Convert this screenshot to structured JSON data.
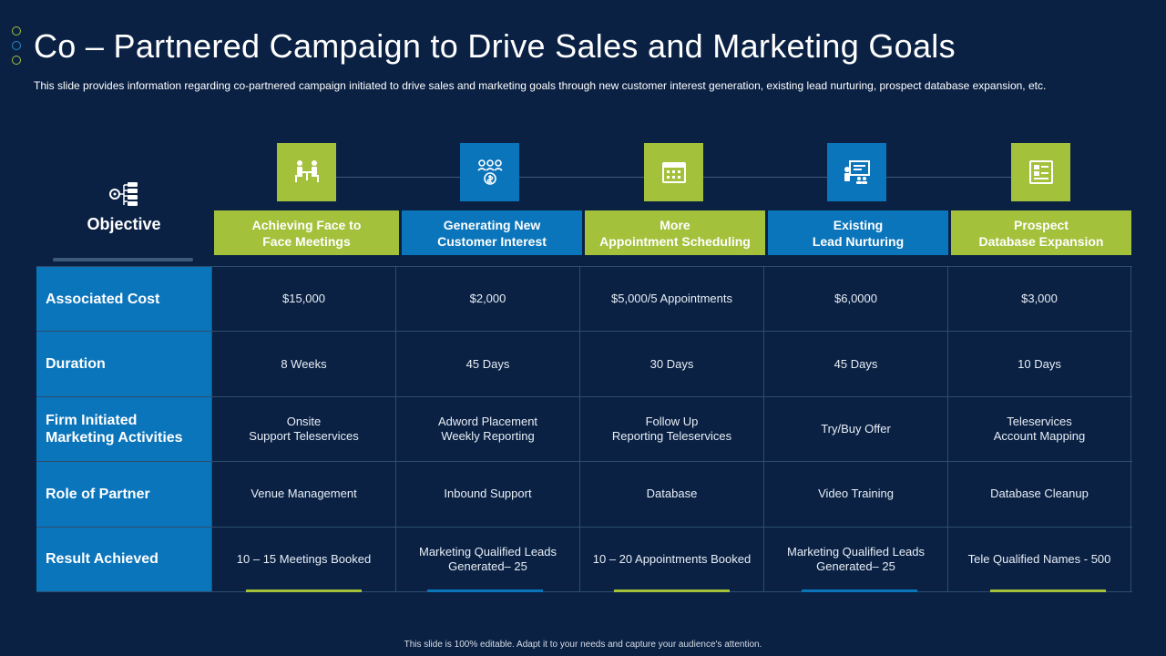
{
  "title": "Co – Partnered Campaign to Drive Sales and Marketing Goals",
  "subtitle": "This slide provides information regarding co-partnered campaign initiated to drive sales and marketing goals through new customer interest generation, existing lead nurturing, prospect database expansion, etc.",
  "objective_label": "Objective",
  "colors": {
    "background": "#0a2144",
    "green": "#a4c13c",
    "blue": "#0b75bb"
  },
  "columns": [
    {
      "label": "Achieving Face to\nFace Meetings",
      "icon": "meeting-icon",
      "color": "green"
    },
    {
      "label": "Generating New\nCustomer Interest",
      "icon": "customer-group-icon",
      "color": "blue"
    },
    {
      "label": "More\nAppointment Scheduling",
      "icon": "calendar-icon",
      "color": "green"
    },
    {
      "label": "Existing\nLead  Nurturing",
      "icon": "presentation-icon",
      "color": "blue"
    },
    {
      "label": "Prospect\nDatabase Expansion",
      "icon": "database-icon",
      "color": "green"
    }
  ],
  "rows": [
    {
      "label": "Associated Cost",
      "cells": [
        "$15,000",
        "$2,000",
        "$5,000/5 Appointments",
        "$6,0000",
        "$3,000"
      ]
    },
    {
      "label": "Duration",
      "cells": [
        "8 Weeks",
        "45 Days",
        "30 Days",
        "45 Days",
        "10 Days"
      ]
    },
    {
      "label": "Firm Initiated\nMarketing Activities",
      "cells": [
        "Onsite\nSupport Teleservices",
        "Adword Placement\nWeekly Reporting",
        "Follow Up\nReporting Teleservices",
        "Try/Buy Offer",
        "Teleservices\nAccount Mapping"
      ]
    },
    {
      "label": "Role of Partner",
      "cells": [
        "Venue Management",
        "Inbound  Support",
        "Database",
        "Video Training",
        "Database Cleanup"
      ]
    },
    {
      "label": "Result Achieved",
      "cells": [
        "10 – 15 Meetings Booked",
        "Marketing Qualified Leads\nGenerated– 25",
        "10 – 20 Appointments  Booked",
        "Marketing Qualified Leads\nGenerated– 25",
        "Tele Qualified Names - 500"
      ]
    }
  ],
  "footer": "This slide is 100% editable. Adapt it to your needs and capture your audience's attention."
}
